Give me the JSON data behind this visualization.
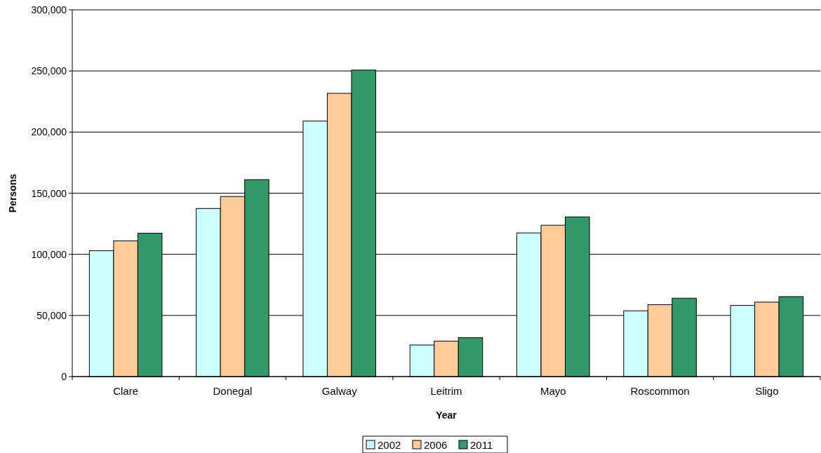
{
  "chart_data": {
    "type": "bar",
    "xlabel": "Year",
    "ylabel": "Persons",
    "categories": [
      "Clare",
      "Donegal",
      "Galway",
      "Leitrim",
      "Mayo",
      "Roscommon",
      "Sligo"
    ],
    "series": [
      {
        "name": "2002",
        "color": "#ccffff",
        "values": [
          103000,
          137500,
          209000,
          25800,
          117500,
          53800,
          58200
        ]
      },
      {
        "name": "2006",
        "color": "#ffcc99",
        "values": [
          111000,
          147300,
          231700,
          29000,
          123800,
          58800,
          60900
        ]
      },
      {
        "name": "2011",
        "color": "#339966",
        "values": [
          117200,
          161100,
          250700,
          31800,
          130600,
          64100,
          65400
        ]
      }
    ],
    "ylim": [
      0,
      300000
    ],
    "yticks": [
      {
        "value": 0,
        "label": "0"
      },
      {
        "value": 50000,
        "label": "50,000"
      },
      {
        "value": 100000,
        "label": "100,000"
      },
      {
        "value": 150000,
        "label": "150,000"
      },
      {
        "value": 200000,
        "label": "200,000"
      },
      {
        "value": 250000,
        "label": "250,000"
      },
      {
        "value": 300000,
        "label": "300,000"
      }
    ],
    "grid": "y",
    "legend": "bottom"
  }
}
